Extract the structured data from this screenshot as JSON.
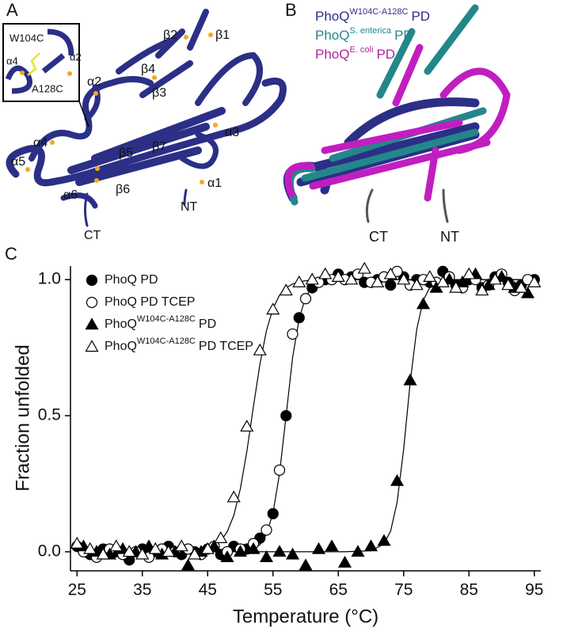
{
  "panel_a": {
    "label": "A",
    "inset": [
      "W104C",
      "α4",
      "α2",
      "A128C"
    ],
    "annotations": [
      "β2",
      "β1",
      "β4",
      "α2",
      "β3",
      "α3",
      "α4",
      "β5",
      "β7",
      "α5",
      "β6",
      "α1",
      "NT",
      "α6",
      "CT"
    ]
  },
  "panel_b": {
    "label": "B",
    "legend": [
      {
        "text": "PhoQ",
        "sup": "W104C-A128C",
        "after": "PD",
        "color": "#2e2e8c"
      },
      {
        "text": "PhoQ",
        "sup": "S. enterica",
        "after": "PD",
        "color": "#23878a"
      },
      {
        "text": "PhoQ",
        "sup": "E. coli",
        "after": "PD",
        "color": "#b0259a"
      }
    ],
    "annotations": [
      "CT",
      "NT"
    ]
  },
  "chart_data": {
    "type": "scatter",
    "panel_label": "C",
    "x_label": "Temperature (°C)",
    "y_label": "Fraction unfolded",
    "xlim": [
      24,
      96
    ],
    "xticks": [
      25,
      35,
      45,
      55,
      65,
      75,
      85,
      95
    ],
    "ylim": [
      -0.07,
      1.05
    ],
    "yticks": [
      {
        "value": 0,
        "label": "0.0"
      },
      {
        "value": 0.5,
        "label": "0.5"
      },
      {
        "value": 1,
        "label": "1.0"
      }
    ],
    "series": [
      {
        "name": "PhoQ PD",
        "marker": "circle",
        "color": "#000000",
        "fill": "#000000",
        "x": [
          25,
          27,
          29,
          31,
          33,
          35,
          37,
          39,
          41,
          43,
          45,
          47,
          49,
          51,
          53,
          55,
          57,
          59,
          61,
          63,
          65,
          67,
          69,
          71,
          73,
          75,
          77,
          79,
          81,
          83,
          85,
          87,
          89,
          91,
          93,
          95
        ],
        "values": [
          0.02,
          -0.01,
          0.01,
          0,
          -0.03,
          0.01,
          0,
          0.02,
          -0.01,
          0,
          0.01,
          -0.01,
          0.02,
          0.01,
          0.05,
          0.14,
          0.5,
          0.86,
          0.97,
          1,
          1.02,
          1.01,
          0.99,
          1,
          0.98,
          1.01,
          1,
          0.99,
          1.03,
          0.98,
          1,
          0.97,
          1.01,
          0.99,
          0.98,
          1
        ]
      },
      {
        "name": "PhoQ PD TCEP",
        "marker": "circle",
        "color": "#000000",
        "fill": "#ffffff",
        "x": [
          26,
          28,
          30,
          32,
          34,
          36,
          38,
          40,
          42,
          44,
          46,
          48,
          50,
          52,
          54,
          56,
          58,
          60,
          62,
          64,
          66,
          68,
          70,
          72,
          74,
          76,
          78,
          80,
          82,
          84,
          86,
          88,
          90,
          92,
          94
        ],
        "values": [
          0,
          -0.02,
          0.01,
          -0.01,
          0,
          -0.02,
          0.01,
          0,
          0.01,
          -0.01,
          0.02,
          0,
          0.01,
          0.03,
          0.08,
          0.3,
          0.8,
          0.93,
          0.99,
          1,
          1,
          1.02,
          0.99,
          1.01,
          1.03,
          0.98,
          1,
          0.99,
          1.01,
          0.97,
          1,
          0.98,
          1.02,
          0.96,
          1
        ]
      },
      {
        "name": {
          "text": "PhoQ",
          "sup": "W104C-A128C",
          "after": "PD"
        },
        "marker": "triangle",
        "color": "#000000",
        "fill": "#000000",
        "x": [
          26,
          28,
          30,
          32,
          34,
          36,
          38,
          40,
          42,
          44,
          46,
          48,
          50,
          52,
          54,
          56,
          58,
          60,
          62,
          64,
          66,
          68,
          70,
          72,
          74,
          76,
          78,
          80,
          82,
          84,
          86,
          88,
          90,
          92,
          94
        ],
        "values": [
          0.02,
          0,
          -0.01,
          0.01,
          0,
          0.02,
          -0.01,
          0,
          -0.05,
          0,
          0.02,
          -0.02,
          0,
          0.01,
          -0.02,
          0,
          -0.01,
          -0.05,
          0.01,
          0.02,
          -0.04,
          0,
          0.02,
          0.04,
          0.26,
          0.63,
          0.91,
          0.97,
          1,
          0.99,
          1.02,
          0.98,
          1.01,
          0.97,
          0.95
        ]
      },
      {
        "name": {
          "text": "PhoQ",
          "sup": "W104C-A128C",
          "after": "PD TCEP"
        },
        "marker": "triangle",
        "color": "#000000",
        "fill": "#ffffff",
        "x": [
          25,
          27,
          29,
          31,
          33,
          35,
          37,
          39,
          41,
          43,
          45,
          47,
          49,
          51,
          53,
          55,
          57,
          59,
          61,
          63,
          65,
          67,
          69,
          71,
          73,
          75,
          77,
          79,
          81,
          83,
          85,
          87,
          89,
          91,
          93,
          95
        ],
        "values": [
          0.03,
          0.01,
          -0.01,
          0.02,
          0,
          -0.01,
          0.01,
          0,
          0.02,
          -0.01,
          0.01,
          0.05,
          0.2,
          0.46,
          0.74,
          0.89,
          0.96,
          0.99,
          1,
          1.02,
          1.01,
          1,
          1.04,
          0.99,
          1.02,
          1,
          0.98,
          1.01,
          0.99,
          0.97,
          1.02,
          0.96,
          1,
          0.98,
          0.97,
          0.99
        ]
      }
    ],
    "fit_x": [
      25,
      35,
      45,
      47,
      48,
      49,
      50,
      51,
      52,
      53,
      54,
      55,
      56,
      57,
      58,
      59,
      60,
      61,
      62,
      64,
      66,
      70,
      72,
      73,
      74,
      75,
      76,
      77,
      78,
      79,
      80,
      82,
      85,
      95
    ],
    "fits": [
      {
        "values": [
          0,
          0,
          0,
          0,
          0,
          0.001,
          0.002,
          0.004,
          0.011,
          0.026,
          0.064,
          0.143,
          0.287,
          0.5,
          0.713,
          0.857,
          0.936,
          0.974,
          0.989,
          0.998,
          1,
          1,
          1,
          1,
          1,
          1,
          1,
          1,
          1,
          1,
          1,
          1,
          1,
          1
        ]
      },
      {
        "values": [
          0,
          0,
          0.011,
          0.039,
          0.074,
          0.134,
          0.231,
          0.37,
          0.533,
          0.69,
          0.813,
          0.894,
          0.943,
          0.97,
          0.984,
          0.992,
          0.996,
          0.998,
          0.999,
          1,
          1,
          1,
          1,
          1,
          1,
          1,
          1,
          1,
          1,
          1,
          1,
          1,
          1,
          1
        ]
      },
      {
        "values": [
          0,
          0,
          0,
          0,
          0,
          0,
          0,
          0,
          0,
          0,
          0,
          0,
          0,
          0,
          0,
          0,
          0,
          0,
          0,
          0,
          0,
          0.004,
          0.029,
          0.076,
          0.182,
          0.378,
          0.622,
          0.818,
          0.924,
          0.971,
          0.989,
          0.998,
          1,
          1
        ]
      }
    ]
  }
}
